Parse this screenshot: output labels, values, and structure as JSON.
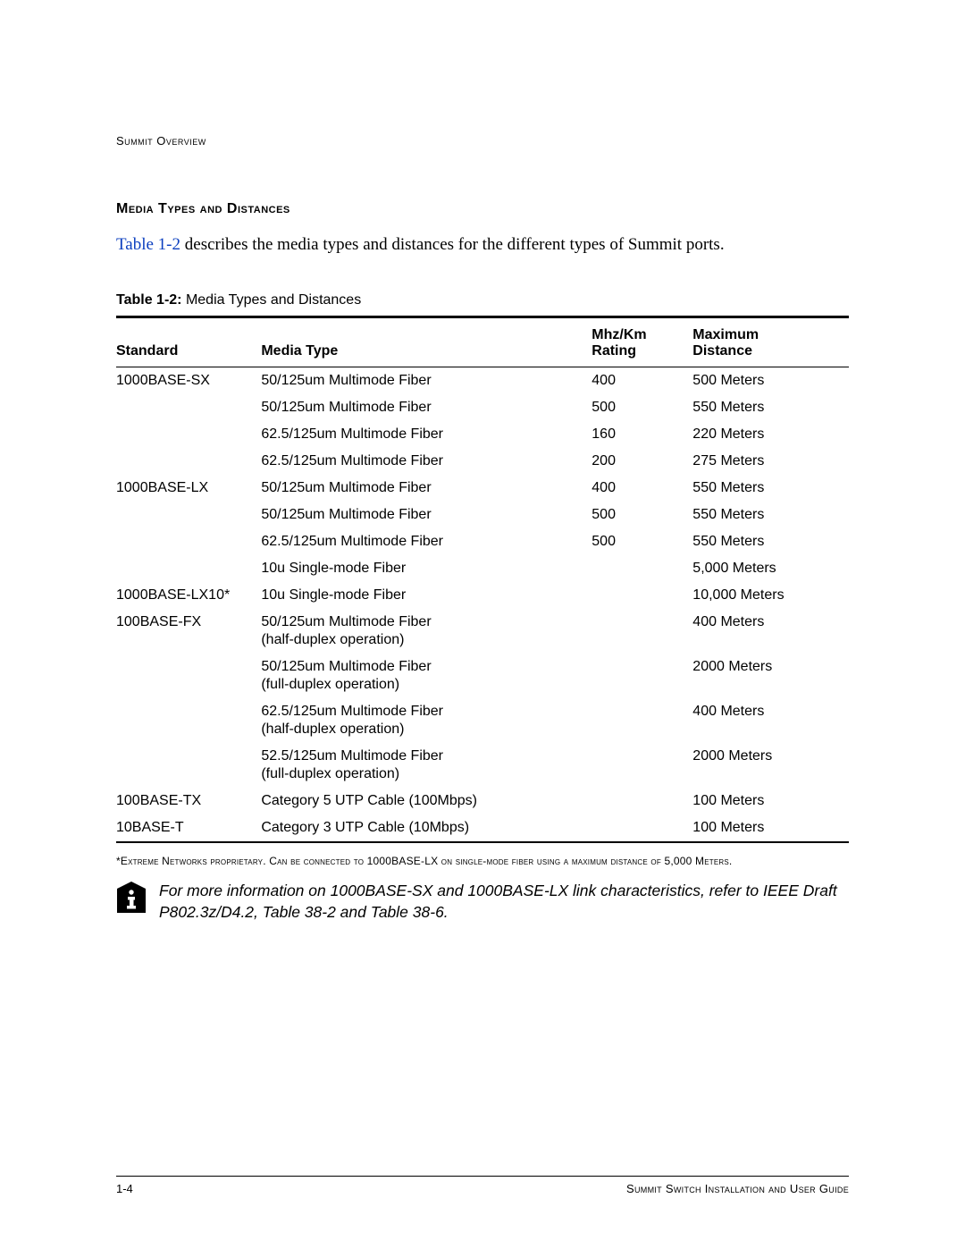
{
  "header": {
    "running": "Summit Overview"
  },
  "section": {
    "title": "Media Types and Distances",
    "intro_link": "Table 1-2",
    "intro_rest": " describes the media types and distances for the different types of Summit ports."
  },
  "table": {
    "caption_label": "Table 1-2:",
    "caption_text": "  Media Types and Distances",
    "headers": {
      "standard": "Standard",
      "media": "Media Type",
      "rating_l1": "Mhz/Km",
      "rating_l2": "Rating",
      "distance_l1": "Maximum",
      "distance_l2": "Distance"
    },
    "rows": [
      {
        "standard": "1000BASE-SX",
        "media": "50/125um Multimode Fiber",
        "rating": "400",
        "distance": "500 Meters"
      },
      {
        "standard": "",
        "media": "50/125um Multimode Fiber",
        "rating": "500",
        "distance": "550 Meters"
      },
      {
        "standard": "",
        "media": "62.5/125um Multimode Fiber",
        "rating": "160",
        "distance": "220 Meters"
      },
      {
        "standard": "",
        "media": "62.5/125um Multimode Fiber",
        "rating": "200",
        "distance": "275 Meters"
      },
      {
        "standard": "1000BASE-LX",
        "media": "50/125um Multimode Fiber",
        "rating": "400",
        "distance": "550 Meters"
      },
      {
        "standard": "",
        "media": "50/125um Multimode Fiber",
        "rating": "500",
        "distance": "550 Meters"
      },
      {
        "standard": "",
        "media": "62.5/125um Multimode Fiber",
        "rating": "500",
        "distance": "550 Meters"
      },
      {
        "standard": "",
        "media": "10u Single-mode Fiber",
        "rating": "",
        "distance": "5,000 Meters"
      },
      {
        "standard": "1000BASE-LX10*",
        "media": "10u Single-mode Fiber",
        "rating": "",
        "distance": "10,000 Meters"
      },
      {
        "standard": "100BASE-FX",
        "media": "50/125um Multimode Fiber",
        "media_sub": "(half-duplex operation)",
        "rating": "",
        "distance": "400 Meters"
      },
      {
        "standard": "",
        "media": "50/125um Multimode Fiber",
        "media_sub": "(full-duplex operation)",
        "rating": "",
        "distance": "2000 Meters"
      },
      {
        "standard": "",
        "media": "62.5/125um Multimode Fiber",
        "media_sub": "(half-duplex operation)",
        "rating": "",
        "distance": "400 Meters"
      },
      {
        "standard": "",
        "media": "52.5/125um Multimode Fiber",
        "media_sub": "(full-duplex operation)",
        "rating": "",
        "distance": "2000 Meters"
      },
      {
        "standard": "100BASE-TX",
        "media": "Category 5 UTP Cable (100Mbps)",
        "rating": "",
        "distance": "100 Meters"
      },
      {
        "standard": "10BASE-T",
        "media": "Category 3 UTP Cable (10Mbps)",
        "rating": "",
        "distance": "100 Meters"
      }
    ]
  },
  "footnote": "*Extreme Networks proprietary. Can be connected to 1000BASE-LX on single-mode fiber using a maximum distance of 5,000 Meters.",
  "info_note": "For more information on 1000BASE-SX and 1000BASE-LX link characteristics, refer to IEEE Draft P802.3z/D4.2, Table 38-2 and Table 38-6.",
  "footer": {
    "page": "1-4",
    "guide": "Summit Switch Installation and User Guide"
  }
}
